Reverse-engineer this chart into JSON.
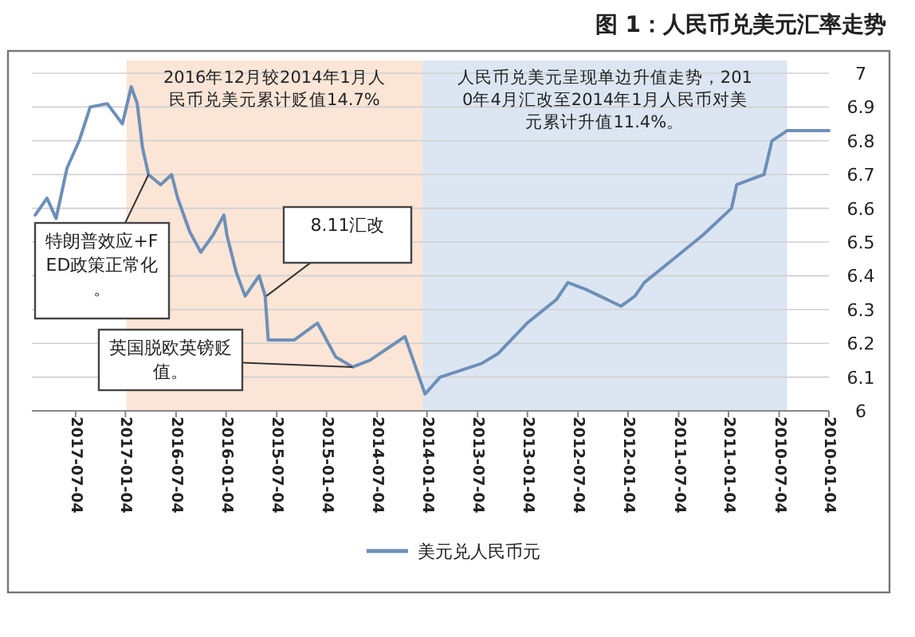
{
  "chart_data": {
    "type": "line",
    "title": "图 1：人民币兑美元汇率走势",
    "x": [
      "2010-01-04",
      "2010-06-05",
      "2010-07-30",
      "2010-08-28",
      "2010-12-05",
      "2010-12-24",
      "2011-04-08",
      "2011-07-23",
      "2011-11-06",
      "2011-12-10",
      "2012-01-30",
      "2012-06-06",
      "2012-08-10",
      "2012-09-20",
      "2013-01-05",
      "2013-04-20",
      "2013-06-20",
      "2013-11-17",
      "2014-01-11",
      "2014-02-10",
      "2014-03-25",
      "2014-07-30",
      "2014-10-01",
      "2014-12-02",
      "2015-02-06",
      "2015-05-01",
      "2015-08-04",
      "2015-08-15",
      "2015-09-06",
      "2015-10-27",
      "2015-11-28",
      "2016-01-01",
      "2016-01-12",
      "2016-02-21",
      "2016-04-05",
      "2016-05-15",
      "2016-06-28",
      "2016-07-20",
      "2016-08-29",
      "2016-10-12",
      "2016-11-03",
      "2016-11-22",
      "2016-12-14",
      "2017-01-15",
      "2017-03-11",
      "2017-05-12",
      "2017-06-21",
      "2017-08-04",
      "2017-09-13",
      "2017-10-16",
      "2017-11-28"
    ],
    "series": [
      {
        "name": "美元兑人民币元",
        "color": "#6d8fb8",
        "values": [
          6.83,
          6.83,
          6.8,
          6.7,
          6.67,
          6.6,
          6.52,
          6.45,
          6.38,
          6.34,
          6.31,
          6.36,
          6.38,
          6.33,
          6.26,
          6.17,
          6.14,
          6.1,
          6.05,
          6.12,
          6.22,
          6.15,
          6.13,
          6.16,
          6.26,
          6.21,
          6.21,
          6.34,
          6.4,
          6.34,
          6.41,
          6.52,
          6.58,
          6.52,
          6.47,
          6.53,
          6.63,
          6.7,
          6.67,
          6.7,
          6.78,
          6.91,
          6.96,
          6.85,
          6.91,
          6.9,
          6.8,
          6.72,
          6.57,
          6.63,
          6.58
        ]
      }
    ],
    "xlim": [
      "2017-12-10",
      "2010-01-04"
    ],
    "ylim": [
      6,
      7
    ],
    "xticks": [
      "2010-01-04",
      "2010-07-04",
      "2011-01-04",
      "2011-07-04",
      "2012-01-04",
      "2012-07-04",
      "2013-01-04",
      "2013-07-04",
      "2014-01-04",
      "2014-07-04",
      "2015-01-04",
      "2015-07-04",
      "2016-01-04",
      "2016-07-04",
      "2017-01-04",
      "2017-07-04"
    ],
    "yticks": [
      6,
      6.1,
      6.2,
      6.3,
      6.4,
      6.5,
      6.6,
      6.7,
      6.8,
      6.9,
      7
    ],
    "grid": "y",
    "legend": "bottom",
    "bands": [
      {
        "axis": "x",
        "from": "2014-01-20",
        "to": "2016-12-31",
        "label": "2016年12月较2014年1月人民币兑美元累计贬值14.7%",
        "color": "#fbe5d6"
      },
      {
        "axis": "x",
        "from": "2010-06-05",
        "to": "2014-01-20",
        "label": "人民币兑美元呈现单边升值走势，2010年4月汇改至2014年1月人民币对美元累计升值11.4%。",
        "color": "#dce6f2"
      }
    ],
    "annotations": [
      {
        "text": "特朗普效应+FED政策正常化。",
        "x": "2016-10-12",
        "y": 6.7
      },
      {
        "text": "8.11汇改",
        "x": "2015-08-11",
        "y": 6.34
      },
      {
        "text": "英国脱欧英镑贬值。",
        "x": "2014-10-01",
        "y": 6.13
      }
    ]
  }
}
